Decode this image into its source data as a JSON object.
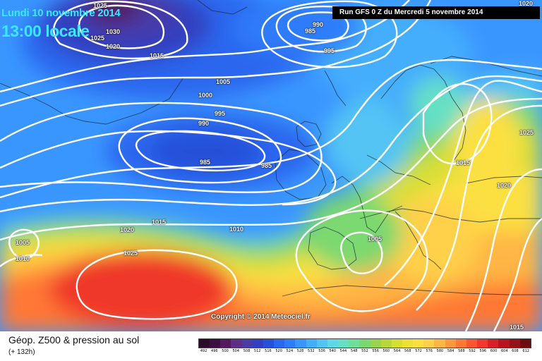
{
  "header": {
    "date_line": "Lundi 10 novembre 2014",
    "time_line": "13:00 locale",
    "run_info": "Run GFS 0 Z du Mercredi 5 novembre 2014"
  },
  "copyright": "Copyright © 2014 Meteociel.fr",
  "footer": {
    "title": "Géop. Z500 & pression au sol",
    "lead_time": "(+ 132h)"
  },
  "isobar_labels": [
    "1025",
    "1030",
    "1025",
    "1020",
    "1015",
    "990",
    "985",
    "995",
    "1005",
    "1000",
    "995",
    "990",
    "985",
    "985",
    "1015",
    "1025",
    "1020",
    "1020",
    "1015",
    "1010",
    "1005",
    "1010",
    "1025",
    "1005",
    "1015",
    "1020"
  ],
  "legend": {
    "ticks": [
      "492",
      "496",
      "500",
      "504",
      "508",
      "512",
      "516",
      "520",
      "524",
      "528",
      "532",
      "536",
      "540",
      "544",
      "548",
      "552",
      "556",
      "560",
      "564",
      "568",
      "572",
      "576",
      "580",
      "584",
      "588",
      "592",
      "596",
      "600",
      "604",
      "608",
      "612"
    ],
    "colors": [
      "#2b0a2a",
      "#3c0f40",
      "#521a5c",
      "#5f2e86",
      "#4a3aa6",
      "#3040c0",
      "#2650d8",
      "#2a66ee",
      "#2f7cfa",
      "#3a96ff",
      "#45aefc",
      "#52c4f4",
      "#5ed8e6",
      "#66e0c4",
      "#6fde9a",
      "#7bd870",
      "#98d44c",
      "#b8d838",
      "#d6de34",
      "#eee038",
      "#fce042",
      "#ffd048",
      "#ffb644",
      "#ff983c",
      "#ff7834",
      "#ff5430",
      "#f0382c",
      "#d62226",
      "#b81420",
      "#96101a",
      "#6e0a10"
    ]
  }
}
